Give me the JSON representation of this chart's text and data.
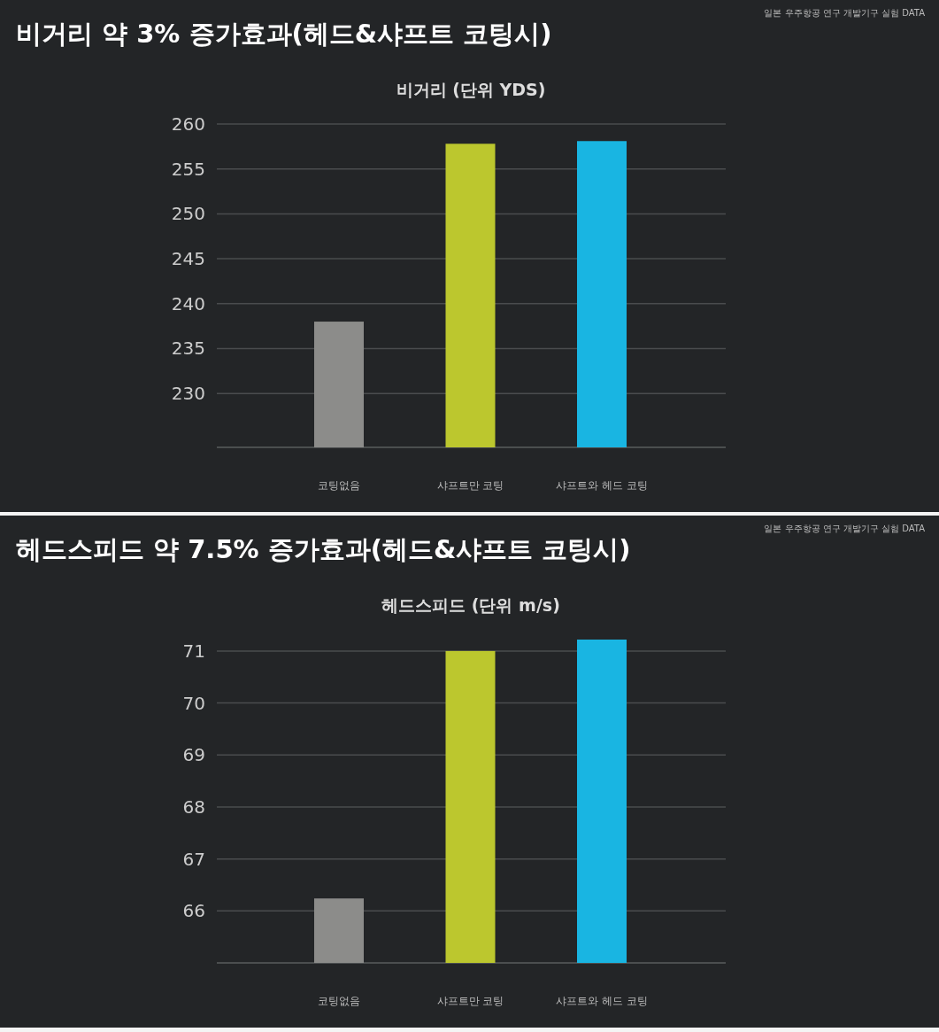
{
  "chart_data": [
    {
      "type": "bar",
      "title": "비거리 약 3% 증가효과(헤드&샤프트 코팅시)",
      "subtitle": "비거리 (단위 YDS)",
      "annotations": [
        "일본 우주항공 연구 개발기구 실험 DATA"
      ],
      "categories": [
        "코팅없음",
        "샤프트만 코팅",
        "샤프트와 헤드 코팅"
      ],
      "values": [
        238,
        257.8,
        258.1
      ],
      "colors": [
        "#8c8c8a",
        "#bcc72e",
        "#19b5e2"
      ],
      "ylim": [
        224,
        260
      ],
      "yticks": [
        230,
        235,
        240,
        245,
        250,
        255,
        260
      ],
      "grid": "y"
    },
    {
      "type": "bar",
      "title": "헤드스피드 약 7.5% 증가효과(헤드&샤프트 코팅시)",
      "subtitle": "헤드스피드 (단위 m/s)",
      "annotations": [
        "일본 우주항공 연구 개발기구 실험 DATA"
      ],
      "categories": [
        "코팅없음",
        "샤프트만 코팅",
        "샤프트와 헤드 코팅"
      ],
      "values": [
        66.24,
        71,
        71.22
      ],
      "colors": [
        "#8c8c8a",
        "#bcc72e",
        "#19b5e2"
      ],
      "ylim": [
        65,
        71.22
      ],
      "yticks": [
        66,
        67,
        68,
        69,
        70,
        71
      ],
      "grid": "y"
    }
  ]
}
